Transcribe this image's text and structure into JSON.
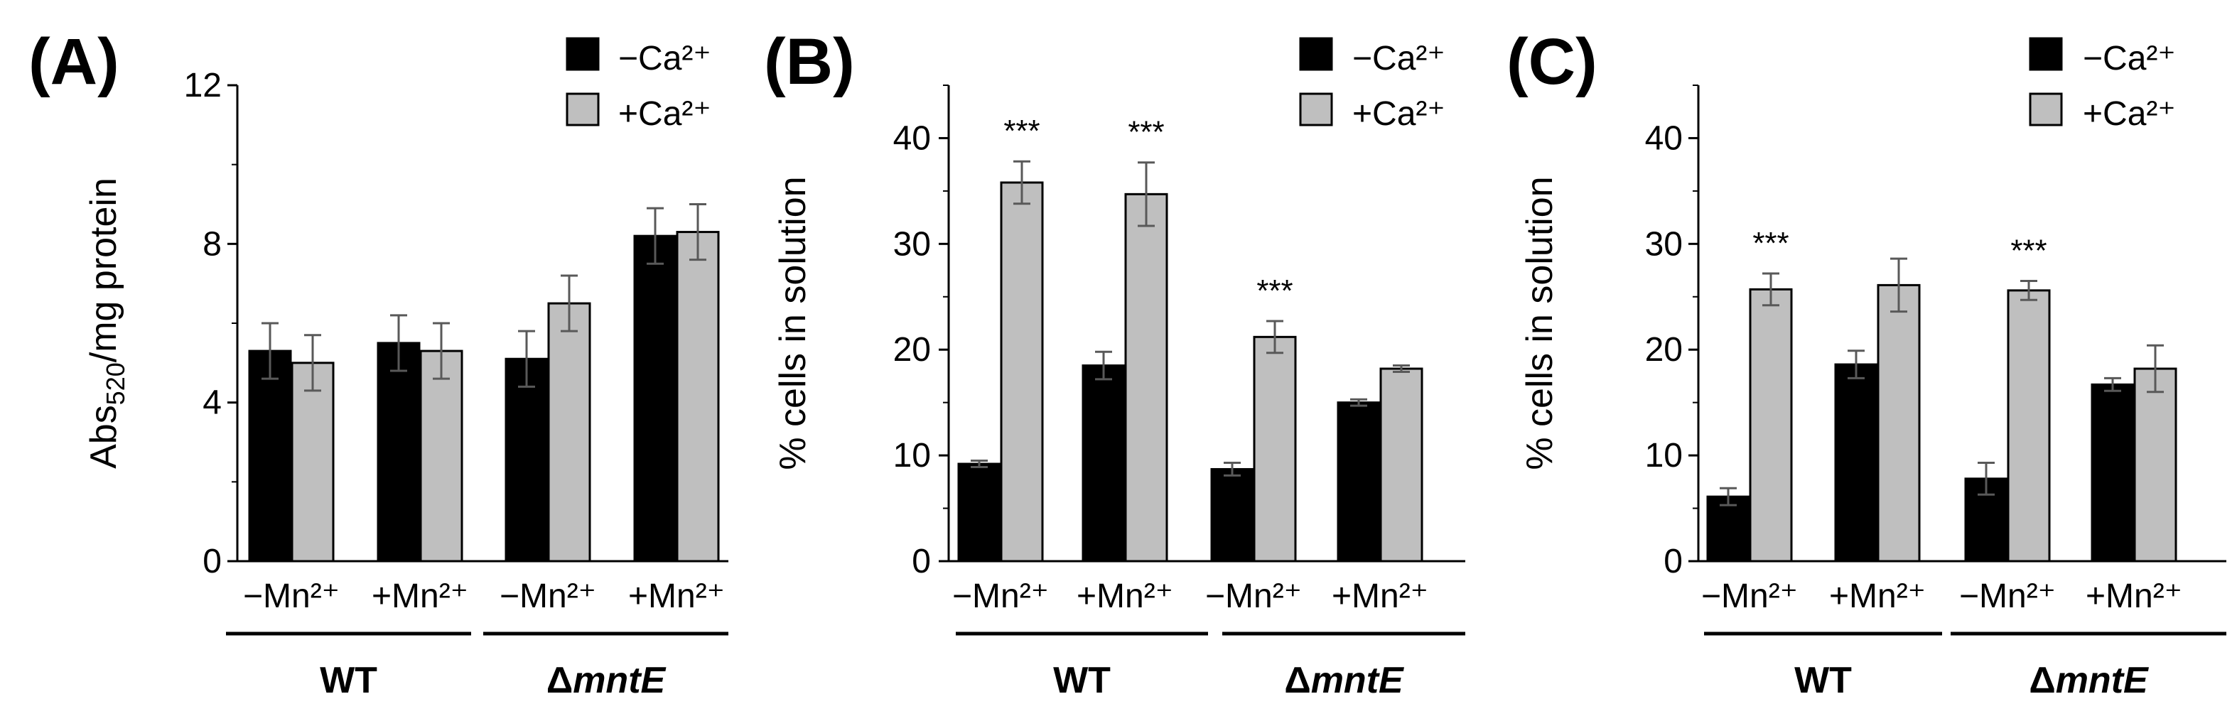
{
  "chart_data": [
    {
      "type": "bar",
      "panel_label": "(A)",
      "ylabel_main": "Abs",
      "ylabel_sub": "520",
      "ylabel_rest": "/mg protein",
      "ylim": [
        0,
        12
      ],
      "yticks": [
        0,
        4,
        8,
        12
      ],
      "minor_yticks": [
        2,
        6,
        10
      ],
      "categories": [
        "−Mn²⁺",
        "+Mn²⁺",
        "−Mn²⁺",
        "+Mn²⁺"
      ],
      "groups": [
        {
          "label": "WT",
          "italic": false,
          "category_indices": [
            0,
            1
          ]
        },
        {
          "label": "mntE",
          "prefix": "Δ",
          "italic": true,
          "category_indices": [
            2,
            3
          ]
        }
      ],
      "series": [
        {
          "name": "−Ca²⁺",
          "color": "#000000",
          "values": [
            5.3,
            5.5,
            5.1,
            8.2
          ],
          "errors": [
            0.7,
            0.7,
            0.7,
            0.7
          ]
        },
        {
          "name": "+Ca²⁺",
          "color": "#bfbfbf",
          "values": [
            5.0,
            5.3,
            6.5,
            8.3
          ],
          "errors": [
            0.7,
            0.7,
            0.7,
            0.7
          ]
        }
      ],
      "annotations": [],
      "legend_position": "top-right"
    },
    {
      "type": "bar",
      "panel_label": "(B)",
      "ylabel_main": "% cells in solution",
      "ylabel_sub": "",
      "ylabel_rest": "",
      "ylim": [
        0,
        45
      ],
      "yticks": [
        0,
        10,
        20,
        30,
        40
      ],
      "minor_yticks": [
        5,
        15,
        25,
        35,
        45
      ],
      "categories": [
        "−Mn²⁺",
        "+Mn²⁺",
        "−Mn²⁺",
        "+Mn²⁺"
      ],
      "groups": [
        {
          "label": "WT",
          "italic": false,
          "category_indices": [
            0,
            1
          ]
        },
        {
          "label": "mntE",
          "prefix": "Δ",
          "italic": true,
          "category_indices": [
            2,
            3
          ]
        }
      ],
      "series": [
        {
          "name": "−Ca²⁺",
          "color": "#000000",
          "values": [
            9.2,
            18.5,
            8.7,
            15.0
          ],
          "errors": [
            0.3,
            1.3,
            0.6,
            0.3
          ]
        },
        {
          "name": "+Ca²⁺",
          "color": "#bfbfbf",
          "values": [
            35.8,
            34.7,
            21.2,
            18.2
          ],
          "errors": [
            2.0,
            3.0,
            1.5,
            0.3
          ]
        }
      ],
      "annotations": [
        {
          "text": "***",
          "category_index": 0
        },
        {
          "text": "***",
          "category_index": 1
        },
        {
          "text": "***",
          "category_index": 2
        }
      ],
      "legend_position": "top-right"
    },
    {
      "type": "bar",
      "panel_label": "(C)",
      "ylabel_main": "% cells in solution",
      "ylabel_sub": "",
      "ylabel_rest": "",
      "ylim": [
        0,
        45
      ],
      "yticks": [
        0,
        10,
        20,
        30,
        40
      ],
      "minor_yticks": [
        5,
        15,
        25,
        35,
        45
      ],
      "categories": [
        "−Mn²⁺",
        "+Mn²⁺",
        "−Mn²⁺",
        "+Mn²⁺"
      ],
      "groups": [
        {
          "label": "WT",
          "italic": false,
          "category_indices": [
            0,
            1
          ]
        },
        {
          "label": "mntE",
          "prefix": "Δ",
          "italic": true,
          "category_indices": [
            2,
            3
          ]
        }
      ],
      "series": [
        {
          "name": "−Ca²⁺",
          "color": "#000000",
          "values": [
            6.1,
            18.6,
            7.8,
            16.7
          ],
          "errors": [
            0.8,
            1.3,
            1.5,
            0.6
          ]
        },
        {
          "name": "+Ca²⁺",
          "color": "#bfbfbf",
          "values": [
            25.7,
            26.1,
            25.6,
            18.2
          ],
          "errors": [
            1.5,
            2.5,
            0.9,
            2.2
          ]
        }
      ],
      "annotations": [
        {
          "text": "***",
          "category_index": 0
        },
        {
          "text": "***",
          "category_index": 2
        }
      ],
      "legend_position": "top-right"
    }
  ]
}
